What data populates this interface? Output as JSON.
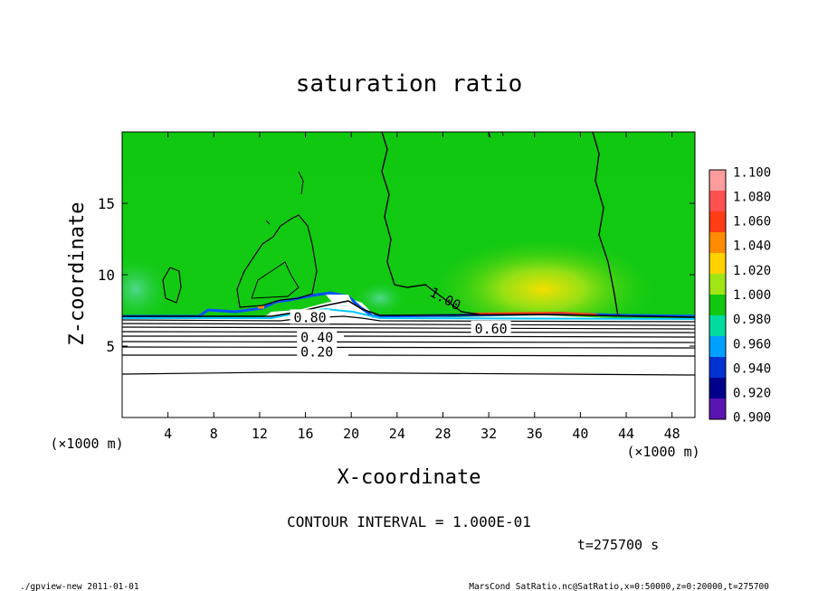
{
  "chart_data": {
    "type": "heatmap",
    "title": "saturation ratio",
    "xlabel": "X-coordinate",
    "ylabel": "Z-coordinate",
    "x_unit": "(×1000 m)",
    "z_unit": "(×1000 m)",
    "xlim": [
      0,
      50
    ],
    "ylim": [
      0,
      20
    ],
    "x_ticks": [
      4,
      8,
      12,
      16,
      20,
      24,
      28,
      32,
      36,
      40,
      44,
      48
    ],
    "y_ticks": [
      5,
      10,
      15
    ],
    "colorbar": {
      "levels": [
        "1.100",
        "1.080",
        "1.060",
        "1.040",
        "1.020",
        "1.000",
        "0.980",
        "0.960",
        "0.940",
        "0.920",
        "0.900"
      ],
      "colors": [
        "#ff9c9c",
        "#ff5050",
        "#ff3c14",
        "#ff8c00",
        "#ffd200",
        "#a0e614",
        "#10c810",
        "#00dca0",
        "#00a0ff",
        "#0032d2",
        "#00008c",
        "#5a14b4"
      ]
    },
    "contour_labels": [
      {
        "text": "1.00",
        "x": 28.2,
        "z": 8.3
      },
      {
        "text": "0.80",
        "x": 16.4,
        "z": 7.0
      },
      {
        "text": "0.60",
        "x": 32.2,
        "z": 6.2
      },
      {
        "text": "0.40",
        "x": 17.0,
        "z": 5.6
      },
      {
        "text": "0.20",
        "x": 17.0,
        "z": 4.6
      }
    ],
    "contour_interval": "CONTOUR INTERVAL = 1.000E-01",
    "time_label": "t=275700 s"
  },
  "footer": {
    "left": "./gpview-new  2011-01-01",
    "right": "MarsCond_SatRatio.nc@SatRatio,x=0:50000,z=0:20000,t=275700"
  }
}
